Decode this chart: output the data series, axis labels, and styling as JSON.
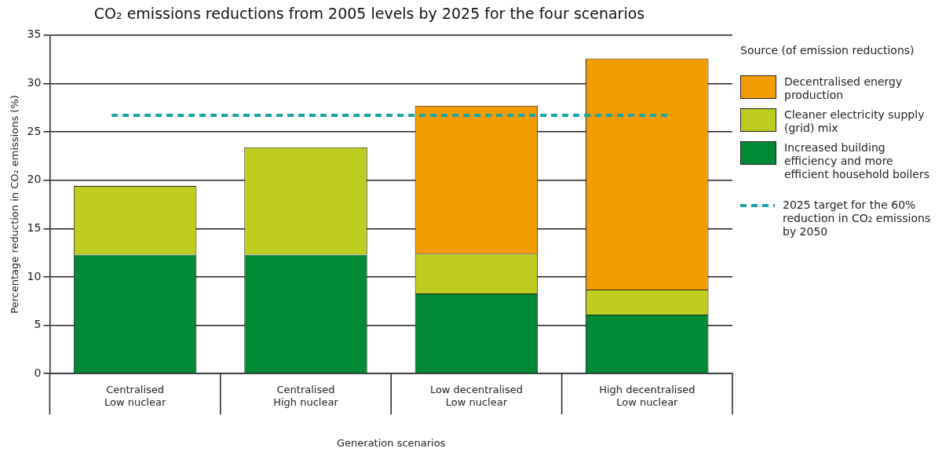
{
  "chart_data": {
    "type": "bar",
    "title": "CO₂ emissions reductions from 2005 levels by 2025 for the four scenarios",
    "xlabel": "Generation scenarios",
    "ylabel": "Percentage reduction in CO₂ emissions (%)",
    "legend_title": "Source (of emission reductions)",
    "categories": [
      "Centralised\nLow nuclear",
      "Centralised\nHigh nuclear",
      "Low decentralised\nLow nuclear",
      "High decentralised\nLow nuclear"
    ],
    "stacked": true,
    "series": [
      {
        "name": "Increased building efficiency and more efficient household boilers",
        "color": "#008a36",
        "values": [
          12.3,
          12.3,
          8.3,
          6.1
        ]
      },
      {
        "name": "Cleaner electricity supply (grid) mix",
        "color": "#bfcd1f",
        "values": [
          7.1,
          11.1,
          4.1,
          2.6
        ]
      },
      {
        "name": "Decentralised energy production",
        "color": "#f29c00",
        "values": [
          null,
          null,
          15.3,
          23.9
        ]
      }
    ],
    "ylim": [
      0,
      35
    ],
    "yticks": [
      0,
      5,
      10,
      15,
      20,
      25,
      30,
      35
    ],
    "grid": "y",
    "legend": "right",
    "ref_lines": [
      {
        "axis": "y",
        "value": 26.7,
        "label": "2025 target for the 60% reduction in CO₂ emissions by 2050",
        "color": "#1aa3a3",
        "line_style": "dashed"
      }
    ]
  }
}
